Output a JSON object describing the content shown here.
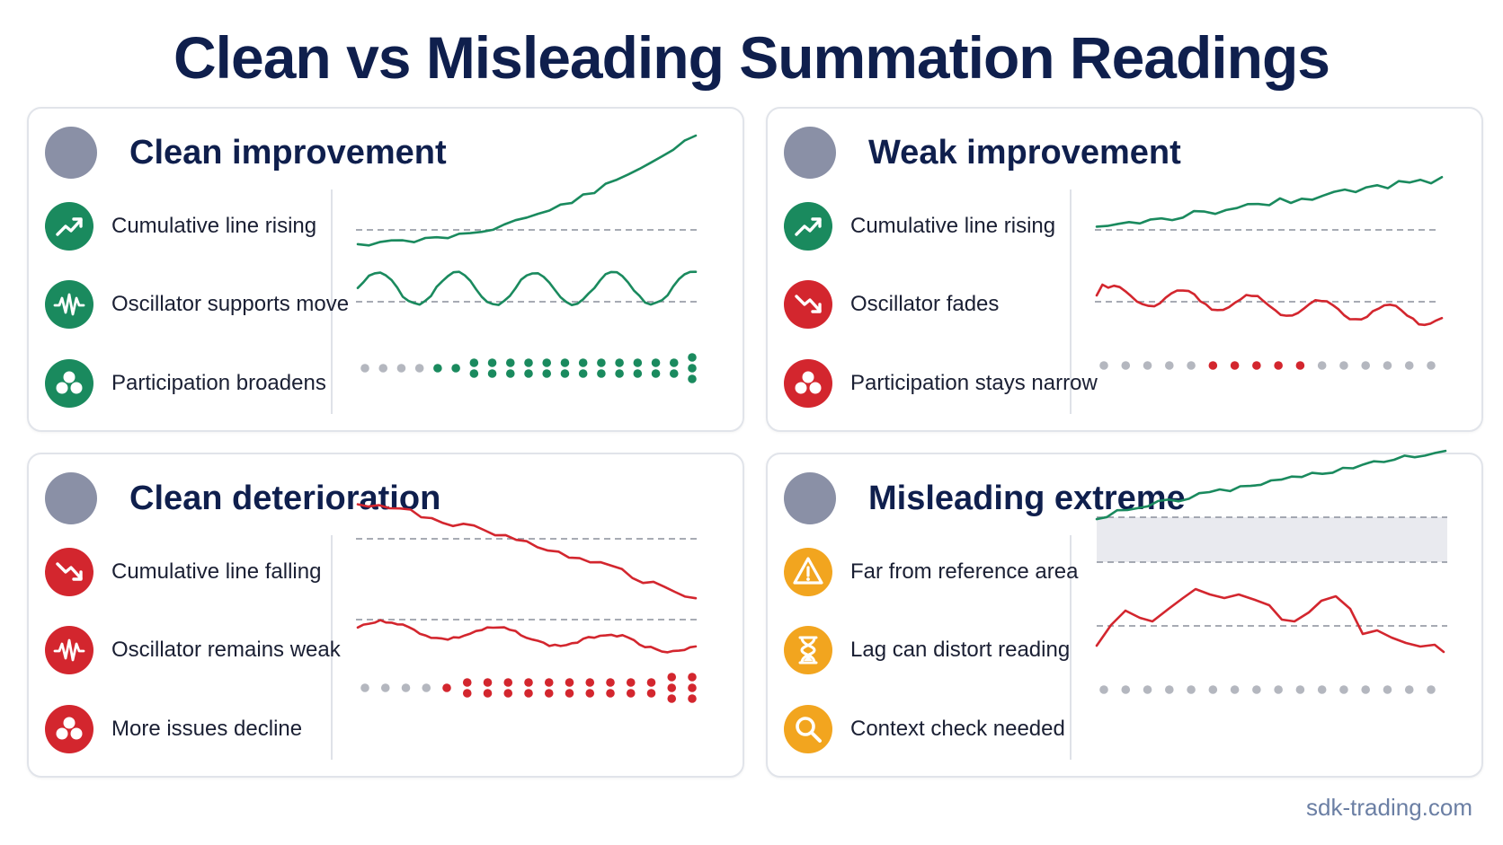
{
  "title": "Clean vs Misleading Summation Readings",
  "footer": "sdk-trading.com",
  "colors": {
    "green": "#1a8a5e",
    "red": "#d3262e",
    "amber": "#f2a51f",
    "gray_dot": "#b4b7bf",
    "reference_line": "#8a8f9c",
    "band": "#e9eaef",
    "panel_dot": "#8a90a6"
  },
  "panels": [
    {
      "title": "Clean improvement",
      "rows": [
        {
          "label": "Cumulative line rising",
          "icon": "trend-up-icon",
          "tone": "green"
        },
        {
          "label": "Oscillator supports move",
          "icon": "wave-icon",
          "tone": "green"
        },
        {
          "label": "Participation broadens",
          "icon": "dots-cluster-icon",
          "tone": "green"
        }
      ]
    },
    {
      "title": "Weak improvement",
      "rows": [
        {
          "label": "Cumulative line rising",
          "icon": "trend-up-icon",
          "tone": "green"
        },
        {
          "label": "Oscillator fades",
          "icon": "trend-down-icon",
          "tone": "red"
        },
        {
          "label": "Participation stays narrow",
          "icon": "dots-cluster-icon",
          "tone": "red"
        }
      ]
    },
    {
      "title": "Clean deterioration",
      "rows": [
        {
          "label": "Cumulative line falling",
          "icon": "trend-down-icon",
          "tone": "red"
        },
        {
          "label": "Oscillator remains weak",
          "icon": "wave-icon",
          "tone": "red"
        },
        {
          "label": "More issues decline",
          "icon": "dots-cluster-icon",
          "tone": "red"
        }
      ]
    },
    {
      "title": "Misleading extreme",
      "rows": [
        {
          "label": "Far from reference area",
          "icon": "warning-icon",
          "tone": "amber"
        },
        {
          "label": "Lag can distort reading",
          "icon": "hourglass-icon",
          "tone": "amber"
        },
        {
          "label": "Context check needed",
          "icon": "magnifier-icon",
          "tone": "amber"
        }
      ]
    }
  ]
}
